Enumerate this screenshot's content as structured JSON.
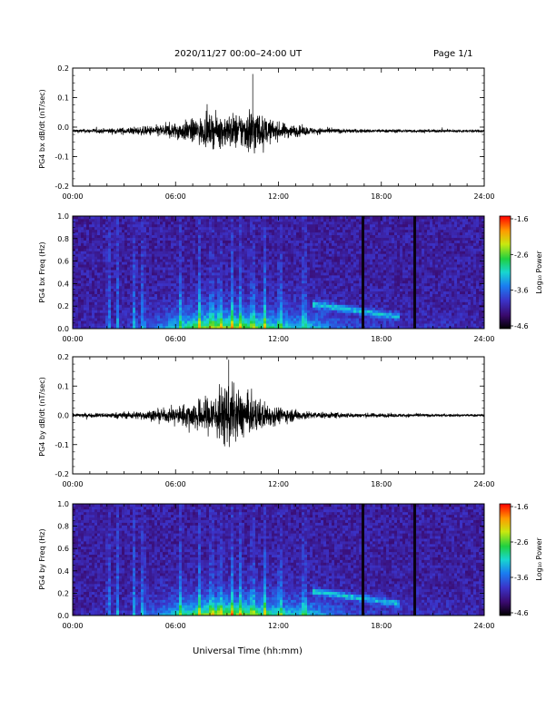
{
  "header": {
    "title": "2020/11/27  00:00–24:00 UT",
    "page": "Page 1/1"
  },
  "footer": {
    "xlabel": "Universal Time (hh:mm)"
  },
  "colorbar": {
    "label": "Log₁₀ Power",
    "ticks": [
      "-1.6",
      "-2.6",
      "-3.6",
      "-4.6"
    ]
  },
  "chart_data": [
    {
      "type": "line",
      "ylabel": "PG4 bx dB/dt (nT/sec)",
      "xlim": [
        "00:00",
        "24:00"
      ],
      "ylim": [
        -0.2,
        0.2
      ],
      "xticks": [
        "00:00",
        "06:00",
        "12:00",
        "18:00",
        "24:00"
      ],
      "yticks": [
        "0.2",
        "0.1",
        "0.0",
        "-0.1",
        "-0.2"
      ],
      "envelope": {
        "x_hours": [
          0,
          2,
          4,
          5,
          6,
          7,
          8,
          9,
          10,
          10.5,
          11,
          12,
          13,
          14,
          16,
          18,
          20,
          22,
          24
        ],
        "amplitude": [
          0.01,
          0.015,
          0.025,
          0.035,
          0.05,
          0.07,
          0.09,
          0.1,
          0.11,
          0.17,
          0.09,
          0.05,
          0.035,
          0.02,
          0.012,
          0.01,
          0.01,
          0.008,
          0.008
        ]
      }
    },
    {
      "type": "heatmap",
      "ylabel": "PG4 bx Freq (Hz)",
      "xlim": [
        "00:00",
        "24:00"
      ],
      "ylim": [
        0.0,
        1.0
      ],
      "clim": [
        -4.6,
        -1.6
      ],
      "xticks": [
        "00:00",
        "06:00",
        "12:00",
        "18:00",
        "24:00"
      ],
      "yticks": [
        "1.0",
        "0.8",
        "0.6",
        "0.4",
        "0.2",
        "0.0"
      ]
    },
    {
      "type": "line",
      "ylabel": "PG4 by dB/dt (nT/sec)",
      "xlim": [
        "00:00",
        "24:00"
      ],
      "ylim": [
        -0.2,
        0.2
      ],
      "xticks": [
        "00:00",
        "06:00",
        "12:00",
        "18:00",
        "24:00"
      ],
      "yticks": [
        "0.2",
        "0.1",
        "0.0",
        "-0.1",
        "-0.2"
      ],
      "envelope": {
        "x_hours": [
          0,
          2,
          4,
          5,
          6,
          7,
          8,
          9,
          10,
          11,
          12,
          13,
          14,
          16,
          18,
          20,
          22,
          24
        ],
        "amplitude": [
          0.01,
          0.015,
          0.025,
          0.035,
          0.05,
          0.08,
          0.12,
          0.19,
          0.13,
          0.09,
          0.05,
          0.035,
          0.02,
          0.015,
          0.012,
          0.01,
          0.008,
          0.008
        ]
      }
    },
    {
      "type": "heatmap",
      "ylabel": "PG4 by Freq (Hz)",
      "xlim": [
        "00:00",
        "24:00"
      ],
      "ylim": [
        0.0,
        1.0
      ],
      "clim": [
        -4.6,
        -1.6
      ],
      "xticks": [
        "00:00",
        "06:00",
        "12:00",
        "18:00",
        "24:00"
      ],
      "yticks": [
        "1.0",
        "0.8",
        "0.6",
        "0.4",
        "0.2",
        "0.0"
      ]
    }
  ]
}
